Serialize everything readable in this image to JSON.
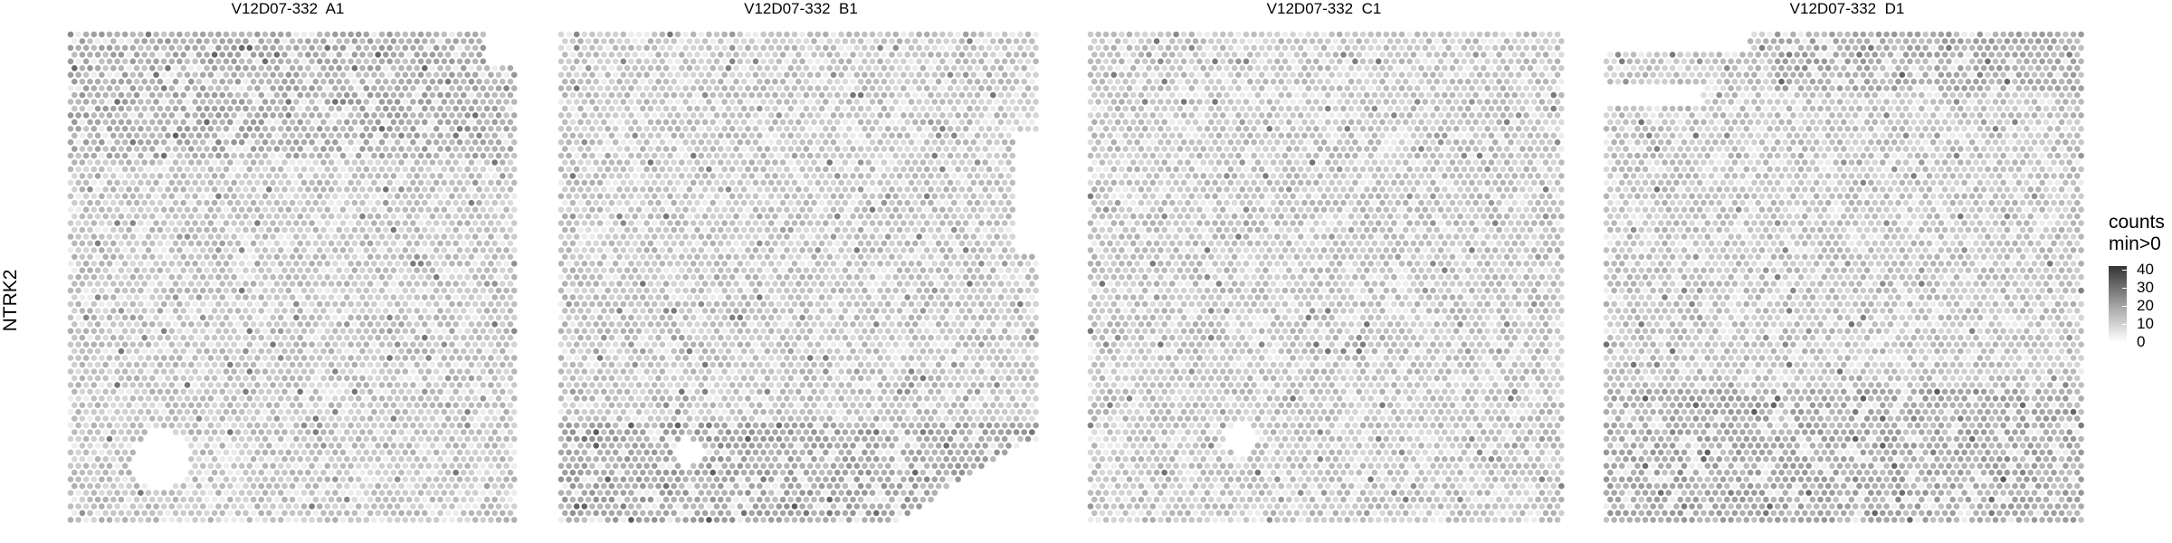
{
  "chart_data": {
    "type": "scatter",
    "row_label": "NTRK2",
    "panels": [
      {
        "title": "V12D07-332  A1"
      },
      {
        "title": "V12D07-332  B1"
      },
      {
        "title": "V12D07-332  C1"
      },
      {
        "title": "V12D07-332  D1"
      }
    ],
    "legend": {
      "title_line1": "counts",
      "title_line2": "min>0",
      "ticks": [
        "0",
        "10",
        "20",
        "30",
        "40"
      ],
      "range": [
        0,
        42
      ],
      "low_color": "#ffffff",
      "high_color": "#333333",
      "placement": "right"
    },
    "grid": false
  }
}
